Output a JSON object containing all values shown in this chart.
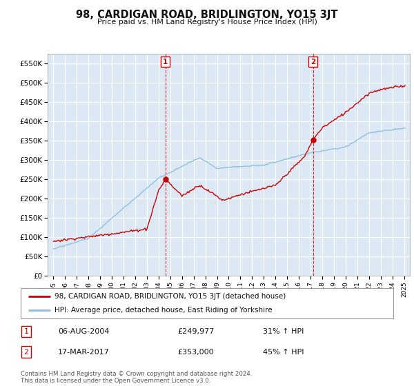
{
  "title": "98, CARDIGAN ROAD, BRIDLINGTON, YO15 3JT",
  "subtitle": "Price paid vs. HM Land Registry's House Price Index (HPI)",
  "background_color": "#dce9f5",
  "plot_bg_color": "#dce9f5",
  "red_line_label": "98, CARDIGAN ROAD, BRIDLINGTON, YO15 3JT (detached house)",
  "blue_line_label": "HPI: Average price, detached house, East Riding of Yorkshire",
  "sale1_date": "06-AUG-2004",
  "sale1_price": "£249,977",
  "sale1_hpi": "31% ↑ HPI",
  "sale1_year": 2004.58,
  "sale2_date": "17-MAR-2017",
  "sale2_price": "£353,000",
  "sale2_hpi": "45% ↑ HPI",
  "sale2_year": 2017.21,
  "ylabel_ticks": [
    "£0",
    "£50K",
    "£100K",
    "£150K",
    "£200K",
    "£250K",
    "£300K",
    "£350K",
    "£400K",
    "£450K",
    "£500K",
    "£550K"
  ],
  "ytick_values": [
    0,
    50000,
    100000,
    150000,
    200000,
    250000,
    300000,
    350000,
    400000,
    450000,
    500000,
    550000
  ],
  "ylim": [
    0,
    575000
  ],
  "xlim_start": 1994.5,
  "xlim_end": 2025.5,
  "footer": "Contains HM Land Registry data © Crown copyright and database right 2024.\nThis data is licensed under the Open Government Licence v3.0.",
  "red_color": "#cc0000",
  "blue_color": "#88bbdd",
  "dashed_color": "#cc0000",
  "sale1_marker_value": 249977,
  "sale2_marker_value": 353000
}
